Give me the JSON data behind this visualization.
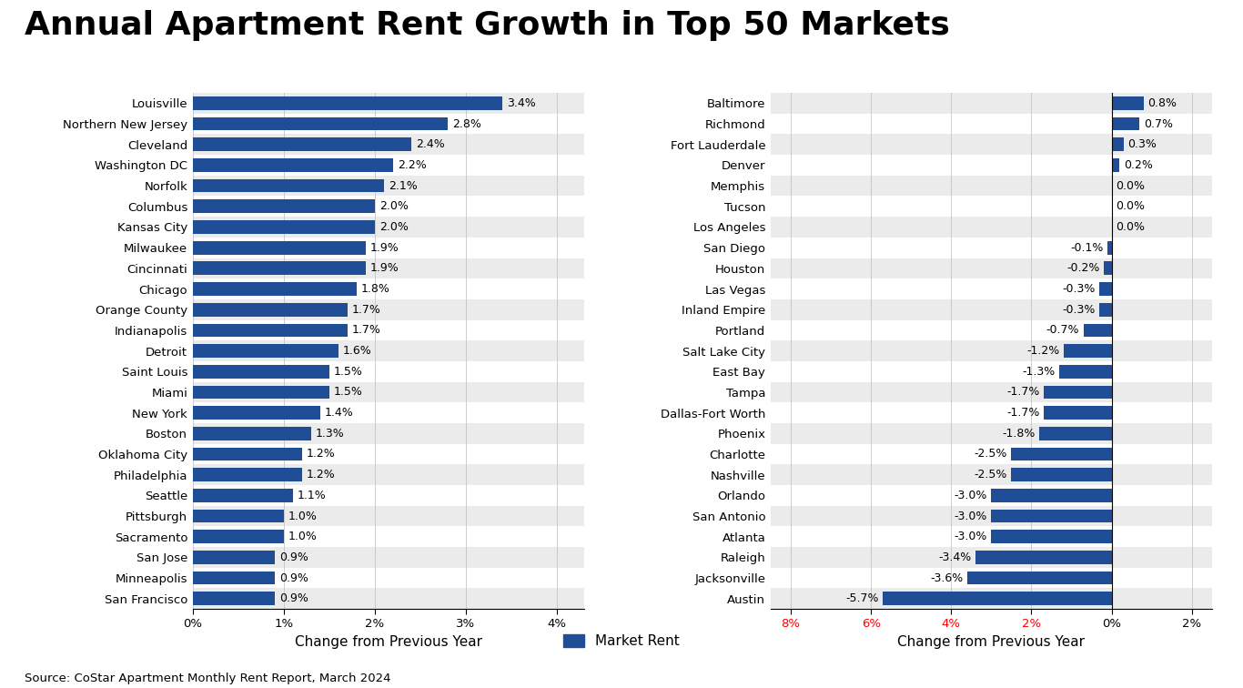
{
  "title": "Annual Apartment Rent Growth in Top 50 Markets",
  "title_fontsize": 26,
  "source": "Source: CoStar Apartment Monthly Rent Report, March 2024",
  "bar_color": "#1F4E96",
  "left_chart": {
    "cities": [
      "Louisville",
      "Northern New Jersey",
      "Cleveland",
      "Washington DC",
      "Norfolk",
      "Columbus",
      "Kansas City",
      "Milwaukee",
      "Cincinnati",
      "Chicago",
      "Orange County",
      "Indianapolis",
      "Detroit",
      "Saint Louis",
      "Miami",
      "New York",
      "Boston",
      "Oklahoma City",
      "Philadelphia",
      "Seattle",
      "Pittsburgh",
      "Sacramento",
      "San Jose",
      "Minneapolis",
      "San Francisco"
    ],
    "values": [
      3.4,
      2.8,
      2.4,
      2.2,
      2.1,
      2.0,
      2.0,
      1.9,
      1.9,
      1.8,
      1.7,
      1.7,
      1.6,
      1.5,
      1.5,
      1.4,
      1.3,
      1.2,
      1.2,
      1.1,
      1.0,
      1.0,
      0.9,
      0.9,
      0.9
    ],
    "xlim": [
      0,
      4.3
    ],
    "xlabel": "Change from Previous Year",
    "xticks": [
      0,
      1,
      2,
      3,
      4
    ],
    "xtick_labels": [
      "0%",
      "1%",
      "2%",
      "3%",
      "4%"
    ]
  },
  "right_chart": {
    "cities": [
      "Baltimore",
      "Richmond",
      "Fort Lauderdale",
      "Denver",
      "Memphis",
      "Tucson",
      "Los Angeles",
      "San Diego",
      "Houston",
      "Las Vegas",
      "Inland Empire",
      "Portland",
      "Salt Lake City",
      "East Bay",
      "Tampa",
      "Dallas-Fort Worth",
      "Phoenix",
      "Charlotte",
      "Nashville",
      "Orlando",
      "San Antonio",
      "Atlanta",
      "Raleigh",
      "Jacksonville",
      "Austin"
    ],
    "values": [
      0.8,
      0.7,
      0.3,
      0.2,
      0.0,
      0.0,
      0.0,
      -0.1,
      -0.2,
      -0.3,
      -0.3,
      -0.7,
      -1.2,
      -1.3,
      -1.7,
      -1.7,
      -1.8,
      -2.5,
      -2.5,
      -3.0,
      -3.0,
      -3.0,
      -3.4,
      -3.6,
      -5.7
    ],
    "xlim": [
      -8.5,
      2.5
    ],
    "xlabel": "Change from Previous Year",
    "xticks": [
      -8,
      -6,
      -4,
      -2,
      0,
      2
    ],
    "xtick_labels": [
      "8%",
      "6%",
      "4%",
      "2%",
      "0%",
      "2%"
    ],
    "xtick_colors": [
      "red",
      "red",
      "red",
      "red",
      "black",
      "black"
    ]
  },
  "legend_label": "Market Rent",
  "bg_color": "#FFFFFF",
  "bar_height": 0.65,
  "label_fontsize": 9.0,
  "tick_fontsize": 9.5,
  "axis_label_fontsize": 11
}
